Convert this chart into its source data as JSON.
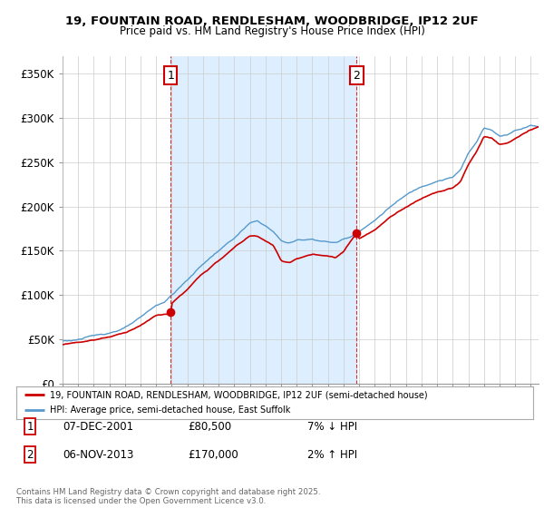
{
  "title_line1": "19, FOUNTAIN ROAD, RENDLESHAM, WOODBRIDGE, IP12 2UF",
  "title_line2": "Price paid vs. HM Land Registry's House Price Index (HPI)",
  "yticks": [
    0,
    50000,
    100000,
    150000,
    200000,
    250000,
    300000,
    350000
  ],
  "ytick_labels": [
    "£0",
    "£50K",
    "£100K",
    "£150K",
    "£200K",
    "£250K",
    "£300K",
    "£350K"
  ],
  "xlim_start": 1995.0,
  "xlim_end": 2025.5,
  "ylim": [
    0,
    370000
  ],
  "sale1_date": 2001.93,
  "sale1_price": 80500,
  "sale1_label": "1",
  "sale2_date": 2013.85,
  "sale2_price": 170000,
  "sale2_label": "2",
  "legend_line1": "19, FOUNTAIN ROAD, RENDLESHAM, WOODBRIDGE, IP12 2UF (semi-detached house)",
  "legend_line2": "HPI: Average price, semi-detached house, East Suffolk",
  "footer": "Contains HM Land Registry data © Crown copyright and database right 2025.\nThis data is licensed under the Open Government Licence v3.0.",
  "line_color_red": "#cc0000",
  "line_color_blue": "#5599cc",
  "shade_color": "#ddeeff",
  "background_color": "#ffffff",
  "grid_color": "#cccccc"
}
